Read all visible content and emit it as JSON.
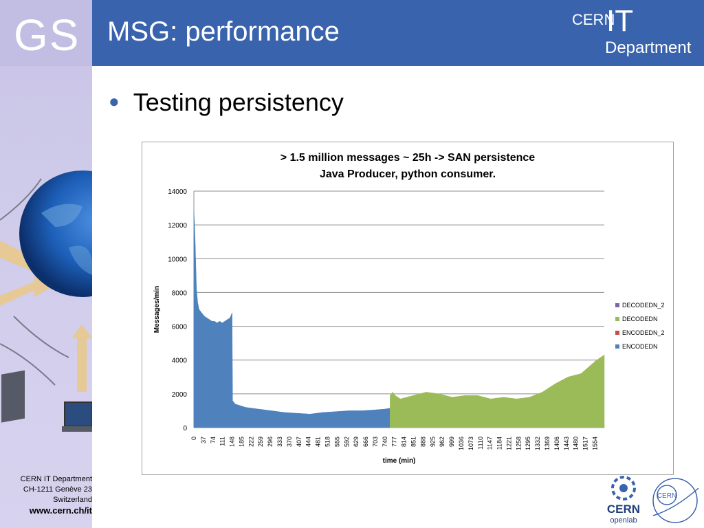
{
  "sidebar": {
    "logo_text": "GS",
    "footer": {
      "line1": "CERN IT Department",
      "line2": "CH-1211 Genève 23",
      "line3": "Switzerland",
      "url": "www.cern.ch/it"
    }
  },
  "header": {
    "title": "MSG: performance",
    "logo": {
      "cern": "CERN",
      "it": "IT",
      "department": "Department"
    }
  },
  "content": {
    "bullet": "Testing persistency"
  },
  "logos": {
    "openlab_cern": "CERN",
    "openlab_text": "openlab",
    "ring_text": "CERN"
  },
  "colors": {
    "header_blue": "#3a63ad",
    "encoded": "#4f81bd",
    "encoded_2": "#c0504d",
    "decoded": "#9bbb59",
    "decoded_2": "#8064a2"
  },
  "chart_data": {
    "type": "area",
    "title": [
      "> 1.5  million messages ~ 25h  -> SAN persistence",
      "Java Producer, python consumer."
    ],
    "xlabel": "time (min)",
    "ylabel": "Messages/min",
    "ylim": [
      0,
      14000
    ],
    "yticks": [
      "0",
      "2000",
      "4000",
      "6000",
      "8000",
      "10000",
      "12000",
      "14000"
    ],
    "xlim": [
      0,
      1590
    ],
    "xticks": [
      "0",
      "37",
      "74",
      "111",
      "148",
      "185",
      "222",
      "259",
      "296",
      "333",
      "370",
      "407",
      "444",
      "481",
      "518",
      "555",
      "592",
      "629",
      "666",
      "703",
      "740",
      "777",
      "814",
      "851",
      "888",
      "925",
      "962",
      "999",
      "1036",
      "1073",
      "1110",
      "1147",
      "1184",
      "1221",
      "1258",
      "1295",
      "1332",
      "1369",
      "1406",
      "1443",
      "1480",
      "1517",
      "1554"
    ],
    "grid": true,
    "legend_position": "right",
    "legend": [
      "DECODEDN_2",
      "DECODEDN",
      "ENCODEDN_2",
      "ENCODEDN"
    ],
    "series": [
      {
        "name": "ENCODEDN",
        "color": "#4f81bd",
        "x": [
          0,
          2,
          5,
          10,
          15,
          20,
          30,
          40,
          50,
          60,
          70,
          80,
          90,
          100,
          110,
          120,
          130,
          140,
          148,
          150,
          160,
          180,
          200,
          250,
          300,
          350,
          400,
          450,
          500,
          550,
          600,
          650,
          700,
          740,
          760,
          761,
          800,
          900,
          1000,
          1100,
          1200,
          1300,
          1369,
          1370,
          1406,
          1554,
          1590
        ],
        "y": [
          12800,
          12200,
          11000,
          8200,
          7400,
          7000,
          6800,
          6600,
          6500,
          6400,
          6300,
          6300,
          6200,
          6300,
          6200,
          6300,
          6400,
          6500,
          6800,
          1600,
          1400,
          1300,
          1200,
          1100,
          1000,
          900,
          850,
          800,
          900,
          950,
          1000,
          1000,
          1050,
          1100,
          1150,
          100,
          120,
          120,
          120,
          120,
          120,
          120,
          150,
          80,
          60,
          60,
          60
        ]
      },
      {
        "name": "DECODEDN",
        "color": "#9bbb59",
        "x": [
          760,
          770,
          780,
          800,
          850,
          900,
          950,
          1000,
          1050,
          1100,
          1150,
          1200,
          1250,
          1300,
          1350,
          1400,
          1450,
          1500,
          1530,
          1560,
          1590
        ],
        "y": [
          1900,
          2100,
          1900,
          1700,
          1900,
          2100,
          2000,
          1800,
          1900,
          1900,
          1700,
          1800,
          1700,
          1800,
          2100,
          2600,
          3000,
          3200,
          3600,
          4000,
          4300
        ]
      },
      {
        "name": "ENCODEDN_2",
        "color": "#c0504d",
        "x": [],
        "y": []
      },
      {
        "name": "DECODEDN_2",
        "color": "#8064a2",
        "x": [],
        "y": []
      }
    ]
  }
}
